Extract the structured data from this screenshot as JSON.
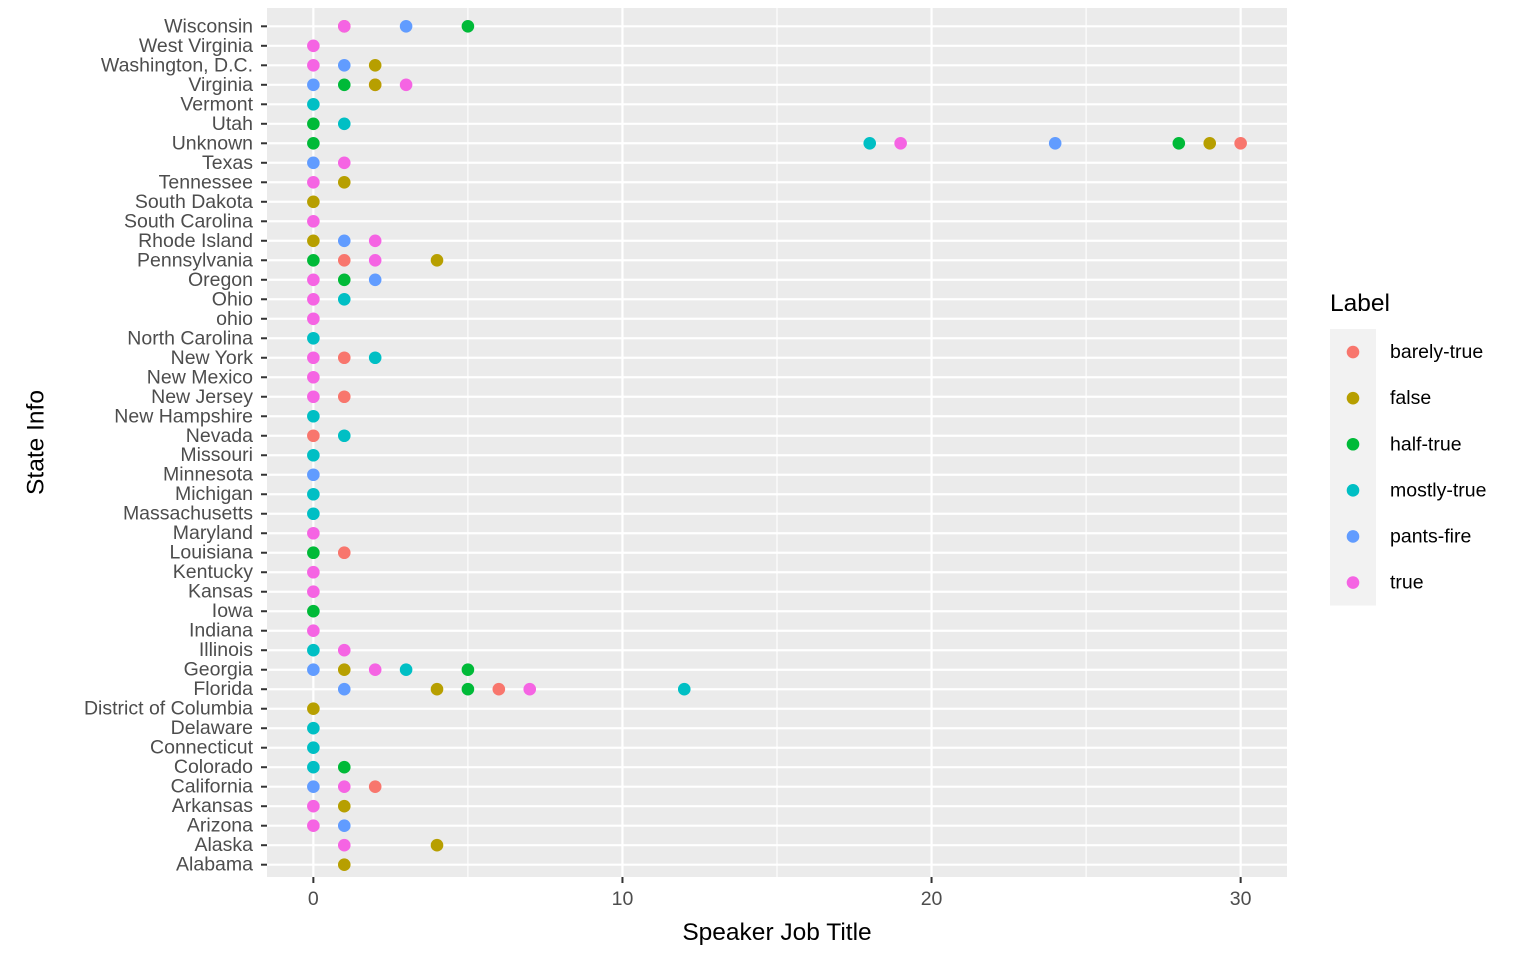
{
  "chart_data": {
    "type": "scatter",
    "title": "",
    "xlabel": "Speaker Job Title",
    "ylabel": "State Info",
    "xlim": [
      -1.5,
      31.5
    ],
    "x_ticks": [
      0,
      10,
      20,
      30
    ],
    "grid": true,
    "legend": {
      "title": "Label",
      "placement": "right"
    },
    "categories": [
      "Alabama",
      "Alaska",
      "Arizona",
      "Arkansas",
      "California",
      "Colorado",
      "Connecticut",
      "Delaware",
      "District of Columbia",
      "Florida",
      "Georgia",
      "Illinois",
      "Indiana",
      "Iowa",
      "Kansas",
      "Kentucky",
      "Louisiana",
      "Maryland",
      "Massachusetts",
      "Michigan",
      "Minnesota",
      "Missouri",
      "Nevada",
      "New Hampshire",
      "New Jersey",
      "New Mexico",
      "New York",
      "North Carolina",
      "ohio",
      "Ohio",
      "Oregon",
      "Pennsylvania",
      "Rhode Island",
      "South Carolina",
      "South Dakota",
      "Tennessee",
      "Texas",
      "Unknown",
      "Utah",
      "Vermont",
      "Virginia",
      "Washington, D.C.",
      "West Virginia",
      "Wisconsin"
    ],
    "series": [
      {
        "name": "barely-true",
        "color": "#F8766D",
        "points": [
          {
            "state": "Wisconsin",
            "x": 1
          },
          {
            "state": "Virginia",
            "x": 2
          },
          {
            "state": "Unknown",
            "x": 30
          },
          {
            "state": "Pennsylvania",
            "x": 1
          },
          {
            "state": "New York",
            "x": 1
          },
          {
            "state": "New Jersey",
            "x": 1
          },
          {
            "state": "Nevada",
            "x": 0
          },
          {
            "state": "Louisiana",
            "x": 1
          },
          {
            "state": "Florida",
            "x": 6
          },
          {
            "state": "California",
            "x": 2
          }
        ]
      },
      {
        "name": "false",
        "color": "#B79F00",
        "points": [
          {
            "state": "Washington, D.C.",
            "x": 2
          },
          {
            "state": "Virginia",
            "x": 2
          },
          {
            "state": "Unknown",
            "x": 29
          },
          {
            "state": "Tennessee",
            "x": 1
          },
          {
            "state": "South Dakota",
            "x": 0
          },
          {
            "state": "Rhode Island",
            "x": 0
          },
          {
            "state": "Pennsylvania",
            "x": 4
          },
          {
            "state": "Georgia",
            "x": 1
          },
          {
            "state": "Florida",
            "x": 4
          },
          {
            "state": "District of Columbia",
            "x": 0
          },
          {
            "state": "Arkansas",
            "x": 1
          },
          {
            "state": "Alaska",
            "x": 4
          },
          {
            "state": "Alabama",
            "x": 1
          }
        ]
      },
      {
        "name": "half-true",
        "color": "#00BA38",
        "points": [
          {
            "state": "Wisconsin",
            "x": 5
          },
          {
            "state": "Virginia",
            "x": 1
          },
          {
            "state": "Utah",
            "x": 0
          },
          {
            "state": "Unknown",
            "x": 0
          },
          {
            "state": "Unknown",
            "x": 28
          },
          {
            "state": "Pennsylvania",
            "x": 0
          },
          {
            "state": "Oregon",
            "x": 1
          },
          {
            "state": "Louisiana",
            "x": 0
          },
          {
            "state": "Iowa",
            "x": 0
          },
          {
            "state": "Georgia",
            "x": 5
          },
          {
            "state": "Florida",
            "x": 5
          },
          {
            "state": "Colorado",
            "x": 1
          }
        ]
      },
      {
        "name": "mostly-true",
        "color": "#00BFC4",
        "points": [
          {
            "state": "Vermont",
            "x": 0
          },
          {
            "state": "Utah",
            "x": 1
          },
          {
            "state": "Unknown",
            "x": 18
          },
          {
            "state": "Ohio",
            "x": 1
          },
          {
            "state": "North Carolina",
            "x": 0
          },
          {
            "state": "New York",
            "x": 2
          },
          {
            "state": "New Hampshire",
            "x": 0
          },
          {
            "state": "Nevada",
            "x": 1
          },
          {
            "state": "Missouri",
            "x": 0
          },
          {
            "state": "Michigan",
            "x": 0
          },
          {
            "state": "Massachusetts",
            "x": 0
          },
          {
            "state": "Illinois",
            "x": 0
          },
          {
            "state": "Georgia",
            "x": 3
          },
          {
            "state": "Florida",
            "x": 12
          },
          {
            "state": "Delaware",
            "x": 0
          },
          {
            "state": "Connecticut",
            "x": 0
          },
          {
            "state": "Colorado",
            "x": 0
          }
        ]
      },
      {
        "name": "pants-fire",
        "color": "#619CFF",
        "points": [
          {
            "state": "Wisconsin",
            "x": 3
          },
          {
            "state": "Washington, D.C.",
            "x": 1
          },
          {
            "state": "Virginia",
            "x": 0
          },
          {
            "state": "Unknown",
            "x": 24
          },
          {
            "state": "Texas",
            "x": 0
          },
          {
            "state": "Rhode Island",
            "x": 1
          },
          {
            "state": "Oregon",
            "x": 2
          },
          {
            "state": "Minnesota",
            "x": 0
          },
          {
            "state": "Georgia",
            "x": 0
          },
          {
            "state": "Florida",
            "x": 1
          },
          {
            "state": "California",
            "x": 0
          },
          {
            "state": "Arizona",
            "x": 1
          }
        ]
      },
      {
        "name": "true",
        "color": "#F564E3",
        "points": [
          {
            "state": "Wisconsin",
            "x": 1
          },
          {
            "state": "West Virginia",
            "x": 0
          },
          {
            "state": "Washington, D.C.",
            "x": 0
          },
          {
            "state": "Virginia",
            "x": 3
          },
          {
            "state": "Unknown",
            "x": 19
          },
          {
            "state": "Texas",
            "x": 1
          },
          {
            "state": "Tennessee",
            "x": 0
          },
          {
            "state": "South Carolina",
            "x": 0
          },
          {
            "state": "Rhode Island",
            "x": 2
          },
          {
            "state": "Pennsylvania",
            "x": 2
          },
          {
            "state": "Oregon",
            "x": 0
          },
          {
            "state": "Ohio",
            "x": 0
          },
          {
            "state": "ohio",
            "x": 0
          },
          {
            "state": "New York",
            "x": 0
          },
          {
            "state": "New Mexico",
            "x": 0
          },
          {
            "state": "New Jersey",
            "x": 0
          },
          {
            "state": "Maryland",
            "x": 0
          },
          {
            "state": "Kentucky",
            "x": 0
          },
          {
            "state": "Kansas",
            "x": 0
          },
          {
            "state": "Indiana",
            "x": 0
          },
          {
            "state": "Illinois",
            "x": 1
          },
          {
            "state": "Georgia",
            "x": 2
          },
          {
            "state": "Florida",
            "x": 7
          },
          {
            "state": "California",
            "x": 1
          },
          {
            "state": "Arkansas",
            "x": 0
          },
          {
            "state": "Arizona",
            "x": 0
          },
          {
            "state": "Alaska",
            "x": 1
          }
        ]
      }
    ]
  }
}
